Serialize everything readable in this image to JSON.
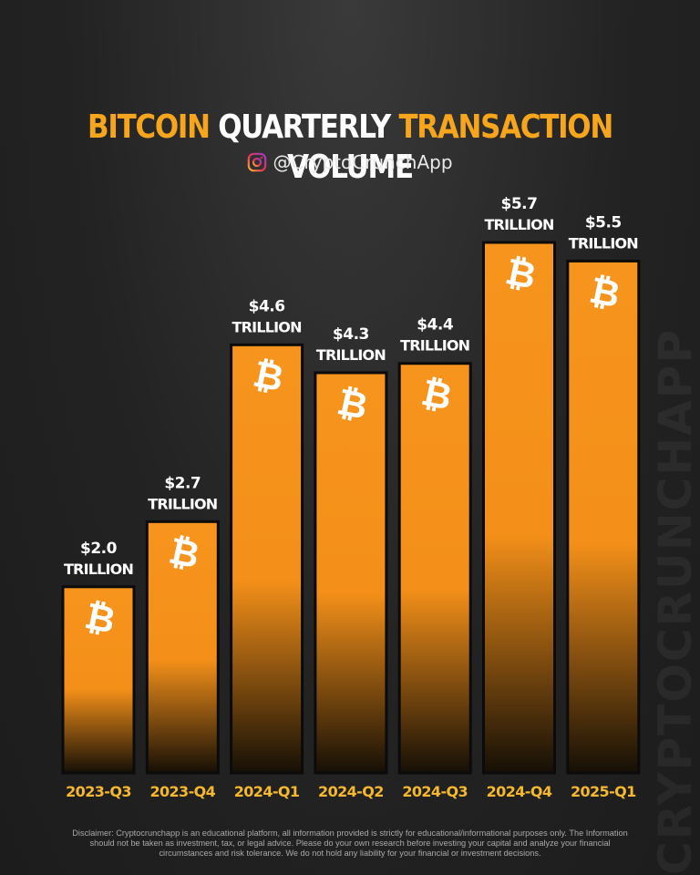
{
  "title": {
    "part1": "BITCOIN",
    "part2": "QUARTERLY",
    "part3": "TRANSACTION",
    "part4": "VOLUME"
  },
  "handle": "@CryptoCrunchApp",
  "watermark": "CRYPTOCRUNCHAPP",
  "disclaimer": "Disclaimer: Cryptocrunchapp is an educational platform, all information provided is strictly for educational/informational purposes only. The Information should not be taken as investment, tax, or legal advice. Please do your own research before investing your capital and analyze your financial circumstances and risk tolerance. We do not hold any liability for your financial or investment decisions.",
  "colors": {
    "bar": "#f7941d",
    "accent": "#f7a51d",
    "background": "#232323",
    "category_label": "#f5b82e",
    "value_label": "#ffffff"
  },
  "chart_data": {
    "type": "bar",
    "categories": [
      "2023-Q3",
      "2023-Q4",
      "2024-Q1",
      "2024-Q2",
      "2024-Q3",
      "2024-Q4",
      "2025-Q1"
    ],
    "values": [
      2.0,
      2.7,
      4.6,
      4.3,
      4.4,
      5.7,
      5.5
    ],
    "value_labels": [
      "$2.0",
      "$2.7",
      "$4.6",
      "$4.3",
      "$4.4",
      "$5.7",
      "$5.5"
    ],
    "unit_label": "TRILLION",
    "bar_icon": "bitcoin-icon",
    "ylim": [
      0,
      5.7
    ],
    "grid": false,
    "legend": "none"
  }
}
